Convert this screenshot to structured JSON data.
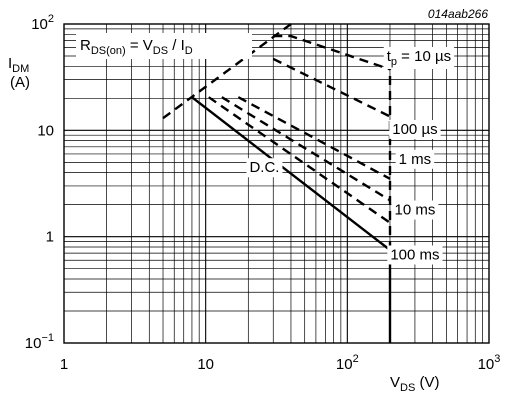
{
  "chart_data": {
    "type": "line",
    "figure_code": "014aab266",
    "x_scale": "log",
    "y_scale": "log",
    "xlim": [
      1,
      1000
    ],
    "ylim": [
      0.1,
      100
    ],
    "x_ticks": [
      {
        "value": 1,
        "base": "1",
        "exp": ""
      },
      {
        "value": 10,
        "base": "10",
        "exp": ""
      },
      {
        "value": 100,
        "base": "10",
        "exp": "2"
      },
      {
        "value": 1000,
        "base": "10",
        "exp": "3"
      }
    ],
    "y_ticks": [
      {
        "value": 0.1,
        "base": "10",
        "exp": "−1"
      },
      {
        "value": 1,
        "base": "1",
        "exp": ""
      },
      {
        "value": 10,
        "base": "10",
        "exp": ""
      },
      {
        "value": 100,
        "base": "10",
        "exp": "2"
      }
    ],
    "xlabel": {
      "main": "V",
      "sub": "DS",
      "unit": " (V)"
    },
    "ylabel": {
      "main": "I",
      "sub": "DM",
      "unit": "(A)"
    },
    "rds_label": {
      "p1": "R",
      "s1": "DS(on)",
      "p2": " = V",
      "s2": "DS",
      "p3": " / I",
      "s3": "D"
    },
    "grid": true,
    "series": [
      {
        "name": "D.C.",
        "style": "solid",
        "points": [
          [
            8,
            20.5
          ],
          [
            200,
            0.75
          ]
        ]
      },
      {
        "name": "100 ms",
        "style": "dashed",
        "points": [
          [
            10.5,
            20.5
          ],
          [
            200,
            1.35
          ]
        ]
      },
      {
        "name": "10 ms",
        "style": "dashed",
        "points": [
          [
            13,
            20.5
          ],
          [
            200,
            2.2
          ]
        ]
      },
      {
        "name": "1 ms",
        "style": "dashed",
        "points": [
          [
            17,
            20.5
          ],
          [
            200,
            3.5
          ]
        ]
      },
      {
        "name": "100 µs",
        "style": "dashed",
        "points": [
          [
            30,
            47
          ],
          [
            200,
            13.5
          ]
        ]
      },
      {
        "name": "tp = 10 µs",
        "style": "dashed",
        "points": [
          [
            30,
            77
          ],
          [
            40,
            77
          ],
          [
            200,
            37.5
          ]
        ]
      },
      {
        "name": "RDS(on) limit",
        "style": "dashed",
        "points": [
          [
            5,
            13
          ],
          [
            40,
            100
          ]
        ]
      },
      {
        "name": "",
        "style": "solid",
        "points": [
          [
            200,
            0.1
          ],
          [
            200,
            0.75
          ]
        ]
      },
      {
        "name": "",
        "style": "dashed",
        "points": [
          [
            200,
            0.75
          ],
          [
            200,
            37.5
          ]
        ]
      }
    ],
    "curve_labels": [
      {
        "text": "D.C.",
        "x": 26,
        "y": 4.5
      },
      {
        "text": "100 ms",
        "x": 300,
        "y": 0.68
      },
      {
        "text": "10 ms",
        "x": 300,
        "y": 1.8
      },
      {
        "text": "1 ms",
        "x": 300,
        "y": 5.4
      },
      {
        "text": "100 µs",
        "x": 300,
        "y": 10.3
      }
    ],
    "tp_label": {
      "p1": "t",
      "sub": "p",
      "p2": " = 10 µs",
      "x": 300,
      "y": 50
    }
  }
}
